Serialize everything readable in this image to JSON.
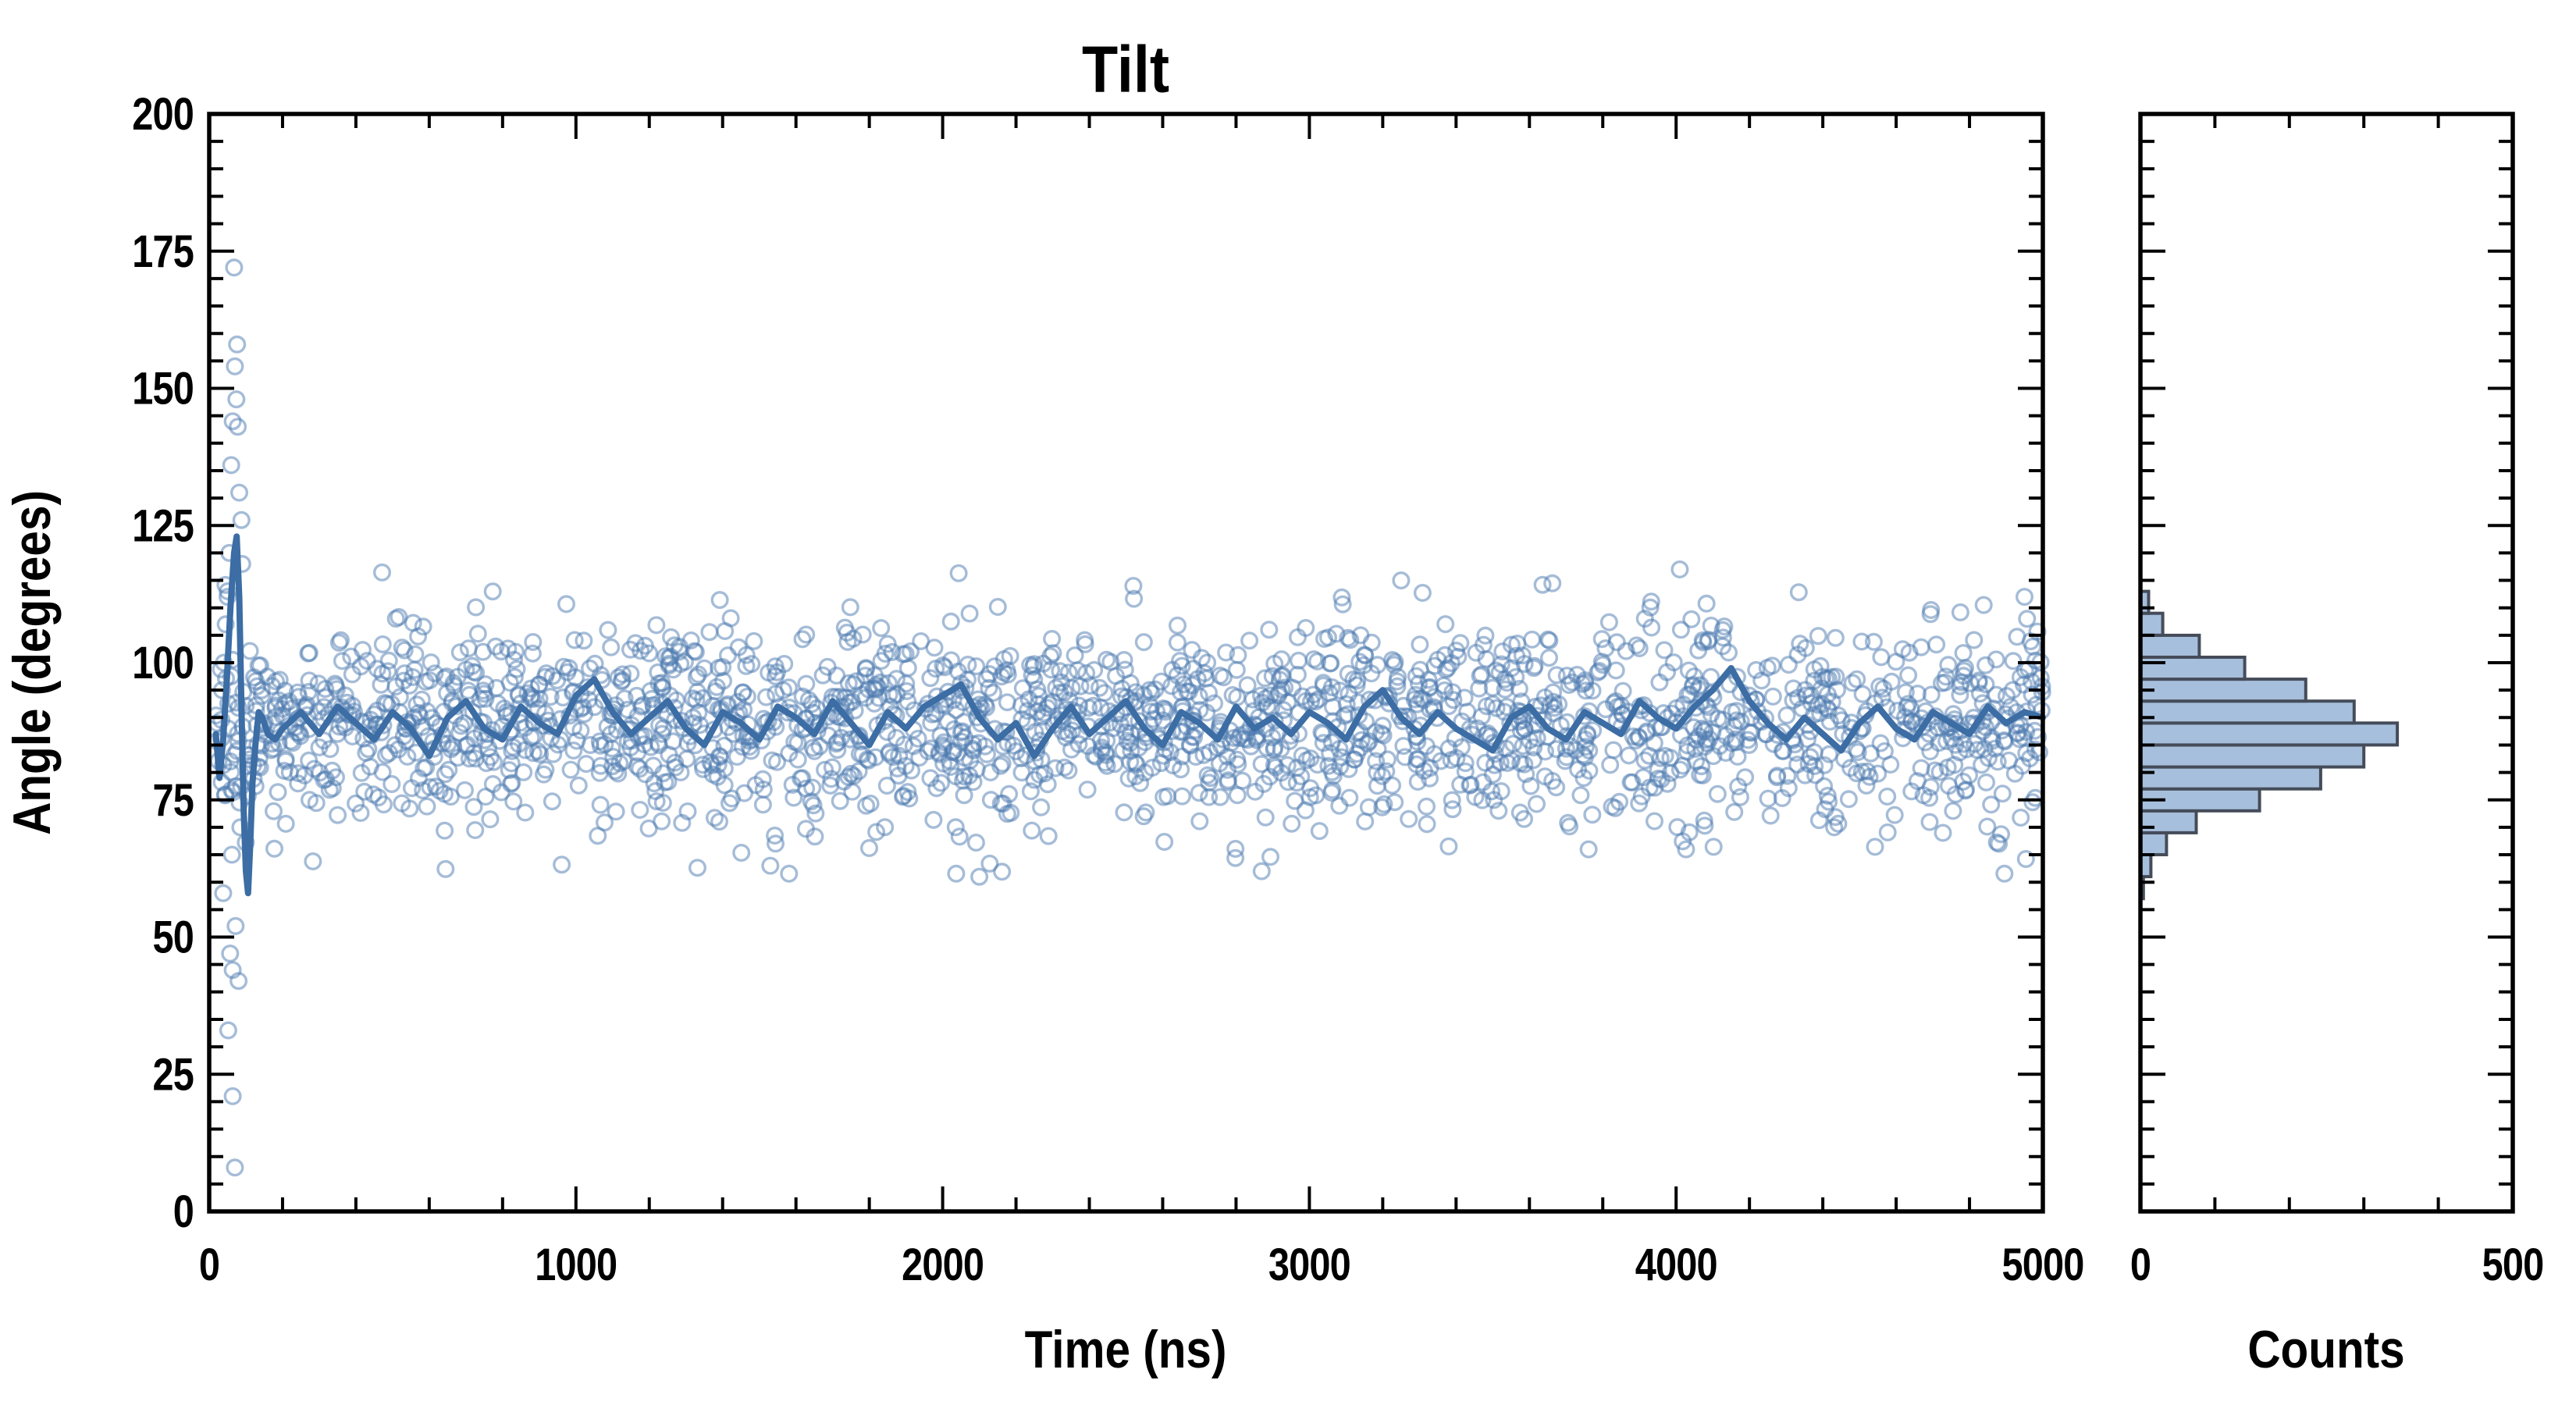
{
  "chart_data": {
    "type": "scatter",
    "title": "Tilt",
    "main_plot": {
      "xlabel": "Time (ns)",
      "ylabel": "Angle (degrees)",
      "xlim": [
        0,
        5000
      ],
      "ylim": [
        0,
        200
      ],
      "x_major_ticks": [
        0,
        1000,
        2000,
        3000,
        4000,
        5000
      ],
      "x_minor_step": 200,
      "y_major_ticks": [
        0,
        25,
        50,
        75,
        100,
        125,
        150,
        175,
        200
      ],
      "y_minor_step": 5,
      "grid": false,
      "scatter": {
        "marker": "open-circle",
        "n_points": 2000,
        "angle_mean": 89,
        "angle_sd": 9.0,
        "t_range": [
          10,
          5000
        ],
        "seed": 20240613,
        "outliers": [
          [
            68,
            172
          ],
          [
            76,
            158
          ],
          [
            70,
            154
          ],
          [
            74,
            148
          ],
          [
            64,
            144
          ],
          [
            78,
            143
          ],
          [
            60,
            136
          ],
          [
            82,
            131
          ],
          [
            88,
            126
          ],
          [
            55,
            120
          ],
          [
            90,
            118
          ],
          [
            50,
            112
          ],
          [
            45,
            107
          ],
          [
            40,
            100
          ],
          [
            35,
            95
          ],
          [
            52,
            88
          ],
          [
            58,
            82
          ],
          [
            44,
            76
          ],
          [
            85,
            70
          ],
          [
            62,
            65
          ],
          [
            38,
            58
          ],
          [
            72,
            52
          ],
          [
            57,
            47
          ],
          [
            64,
            44
          ],
          [
            80,
            42
          ],
          [
            52,
            33
          ],
          [
            64,
            21
          ],
          [
            70,
            8
          ],
          [
            4010,
            117
          ],
          [
            3250,
            115
          ],
          [
            2870,
            62
          ],
          [
            2100,
            61
          ],
          [
            1530,
            63
          ],
          [
            4950,
            112
          ],
          [
            4880,
            67
          ],
          [
            2520,
            114
          ]
        ]
      },
      "mean_line": {
        "transient_points": [
          [
            18,
            87
          ],
          [
            28,
            79
          ],
          [
            38,
            86
          ],
          [
            48,
            97
          ],
          [
            58,
            110
          ],
          [
            68,
            120
          ],
          [
            75,
            123
          ],
          [
            82,
            112
          ],
          [
            88,
            92
          ],
          [
            94,
            73
          ],
          [
            100,
            62
          ],
          [
            106,
            58
          ],
          [
            112,
            67
          ],
          [
            118,
            78
          ],
          [
            126,
            85
          ],
          [
            135,
            91
          ],
          [
            145,
            90
          ],
          [
            160,
            87
          ],
          [
            180,
            86
          ]
        ],
        "t_start": 200,
        "t_step": 50,
        "values": [
          88,
          91,
          87,
          92,
          89,
          86,
          91,
          88,
          83,
          90,
          93,
          88,
          86,
          92,
          89,
          87,
          94,
          97,
          91,
          87,
          90,
          93,
          88,
          85,
          91,
          89,
          86,
          92,
          90,
          87,
          93,
          89,
          85,
          91,
          88,
          92,
          94,
          96,
          90,
          86,
          89,
          83,
          88,
          92,
          87,
          90,
          93,
          88,
          85,
          91,
          89,
          86,
          92,
          88,
          90,
          87,
          91,
          89,
          86,
          92,
          95,
          90,
          87,
          91,
          88,
          86,
          84,
          90,
          92,
          88,
          86,
          91,
          89,
          87,
          93,
          90,
          88,
          92,
          95,
          99,
          93,
          89,
          86,
          90,
          87,
          84,
          89,
          92,
          88,
          86,
          91,
          89,
          87,
          92,
          89,
          91,
          90
        ]
      }
    },
    "histogram": {
      "xlabel": "Counts",
      "orientation": "horizontal",
      "xlim": [
        0,
        500
      ],
      "x_major_ticks": [
        0,
        500
      ],
      "x_minor_step": 100,
      "y_minor_step": 5,
      "bin_edges_deg": [
        57,
        61,
        65,
        69,
        73,
        77,
        81,
        85,
        89,
        93,
        97,
        101,
        105,
        109,
        113
      ],
      "counts": [
        4,
        14,
        35,
        75,
        160,
        242,
        300,
        345,
        287,
        222,
        140,
        79,
        30,
        11
      ]
    },
    "colors": {
      "mean_line": "#3c6da4",
      "marker_stroke": "#4c7ab0",
      "marker_opacity": 0.5,
      "hist_fill": "#a6bfdc",
      "hist_edge": "#454c59",
      "axes": "#000000",
      "background": "#ffffff"
    }
  }
}
